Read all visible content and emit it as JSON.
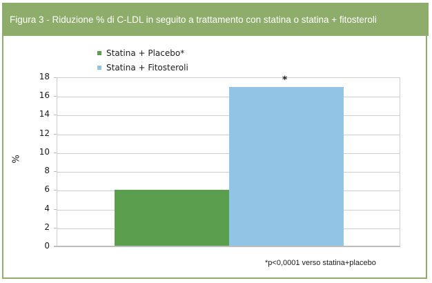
{
  "header": {
    "title": "Figura 3 - Riduzione % di C-LDL in seguito a trattamento con statina o statina + fitosteroli"
  },
  "colors": {
    "header_bg": "#8fad6a",
    "series_placebo": "#5a9e4e",
    "series_fitosteroli": "#92c4e6"
  },
  "legend": [
    {
      "label": "Statina + Placebo*",
      "color": "#5a9e4e"
    },
    {
      "label": "Statina + Fitosteroli",
      "color": "#92c4e6"
    }
  ],
  "footnote": "*p<0,0001 verso statina+placebo",
  "chart_data": {
    "type": "bar",
    "title": "Figura 3 - Riduzione % di C-LDL in seguito a trattamento con statina o statina + fitosteroli",
    "categories": [
      ""
    ],
    "series": [
      {
        "name": "Statina + Placebo*",
        "values": [
          6
        ]
      },
      {
        "name": "Statina + Fitosteroli",
        "values": [
          17
        ]
      }
    ],
    "xlabel": "",
    "ylabel": "%",
    "ylim": [
      0,
      18
    ],
    "yticks": [
      "0",
      "2",
      "4",
      "6",
      "8",
      "10",
      "12",
      "14",
      "16",
      "18"
    ],
    "annotations": [
      {
        "text": "*",
        "series": "Statina + Fitosteroli"
      }
    ],
    "grid": true,
    "legend_position": "top-left"
  }
}
